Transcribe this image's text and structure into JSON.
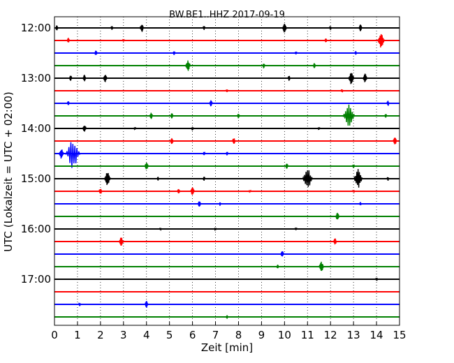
{
  "chart_data": {
    "type": "line",
    "title": "BW.BE1..HHZ 2017-09-19",
    "xlabel": "Zeit  [min]",
    "ylabel": "UTC (Lokalzeit = UTC + 02:00)",
    "xlim": [
      0,
      15
    ],
    "x_ticks": [
      "0",
      "1",
      "2",
      "3",
      "4",
      "5",
      "6",
      "7",
      "8",
      "9",
      "10",
      "11",
      "12",
      "13",
      "14",
      "15"
    ],
    "y_ticks": [
      "12:00",
      "13:00",
      "14:00",
      "15:00",
      "16:00",
      "17:00"
    ],
    "grid": "vertical dotted lines at each minute",
    "trace_interval_minutes": 15,
    "trace_colors": [
      "#000000",
      "#ff0000",
      "#0000ff",
      "#008000"
    ],
    "series": [
      {
        "start": "12:00",
        "color": "#000000",
        "events": [
          {
            "x": 0.1,
            "amp": 4
          },
          {
            "x": 2.5,
            "amp": 3
          },
          {
            "x": 3.8,
            "amp": 6
          },
          {
            "x": 6.5,
            "amp": 3
          },
          {
            "x": 10.0,
            "amp": 7
          },
          {
            "x": 12.0,
            "amp": 3
          },
          {
            "x": 13.3,
            "amp": 5
          }
        ]
      },
      {
        "start": "12:15",
        "color": "#ff0000",
        "events": [
          {
            "x": 0.6,
            "amp": 4
          },
          {
            "x": 3.0,
            "amp": 2
          },
          {
            "x": 11.8,
            "amp": 3
          },
          {
            "x": 14.2,
            "amp": 11
          }
        ]
      },
      {
        "start": "12:30",
        "color": "#0000ff",
        "events": [
          {
            "x": 1.8,
            "amp": 4
          },
          {
            "x": 5.2,
            "amp": 3
          },
          {
            "x": 10.5,
            "amp": 2
          },
          {
            "x": 13.1,
            "amp": 3
          }
        ]
      },
      {
        "start": "12:45",
        "color": "#008000",
        "events": [
          {
            "x": 5.8,
            "amp": 8
          },
          {
            "x": 9.1,
            "amp": 4
          },
          {
            "x": 11.3,
            "amp": 4
          }
        ]
      },
      {
        "start": "13:00",
        "color": "#000000",
        "events": [
          {
            "x": 0.7,
            "amp": 4
          },
          {
            "x": 1.3,
            "amp": 5
          },
          {
            "x": 2.2,
            "amp": 6
          },
          {
            "x": 10.2,
            "amp": 4
          },
          {
            "x": 12.9,
            "amp": 9
          },
          {
            "x": 13.5,
            "amp": 7
          }
        ]
      },
      {
        "start": "13:15",
        "color": "#ff0000",
        "events": [
          {
            "x": 7.5,
            "amp": 2
          },
          {
            "x": 12.5,
            "amp": 2
          }
        ]
      },
      {
        "start": "13:30",
        "color": "#0000ff",
        "events": [
          {
            "x": 0.6,
            "amp": 3
          },
          {
            "x": 6.8,
            "amp": 5
          },
          {
            "x": 14.5,
            "amp": 4
          }
        ]
      },
      {
        "start": "13:45",
        "color": "#008000",
        "events": [
          {
            "x": 4.2,
            "amp": 5
          },
          {
            "x": 5.1,
            "amp": 4
          },
          {
            "x": 8.0,
            "amp": 4
          },
          {
            "x": 12.8,
            "amp": 18
          },
          {
            "x": 14.4,
            "amp": 3
          }
        ]
      },
      {
        "start": "14:00",
        "color": "#000000",
        "events": [
          {
            "x": 1.3,
            "amp": 6
          },
          {
            "x": 3.5,
            "amp": 2
          },
          {
            "x": 6.0,
            "amp": 3
          },
          {
            "x": 11.5,
            "amp": 2
          }
        ]
      },
      {
        "start": "14:15",
        "color": "#ff0000",
        "events": [
          {
            "x": 5.1,
            "amp": 5
          },
          {
            "x": 7.8,
            "amp": 5
          },
          {
            "x": 14.8,
            "amp": 6
          }
        ]
      },
      {
        "start": "14:30",
        "color": "#0000ff",
        "events": [
          {
            "x": 0.3,
            "amp": 8
          },
          {
            "x": 0.8,
            "amp": 22
          },
          {
            "x": 6.5,
            "amp": 3
          },
          {
            "x": 7.5,
            "amp": 3
          }
        ]
      },
      {
        "start": "14:45",
        "color": "#008000",
        "events": [
          {
            "x": 4.0,
            "amp": 6
          },
          {
            "x": 10.1,
            "amp": 4
          },
          {
            "x": 13.0,
            "amp": 3
          }
        ]
      },
      {
        "start": "15:00",
        "color": "#000000",
        "events": [
          {
            "x": 2.3,
            "amp": 10
          },
          {
            "x": 4.5,
            "amp": 3
          },
          {
            "x": 6.5,
            "amp": 3
          },
          {
            "x": 11.0,
            "amp": 16
          },
          {
            "x": 13.2,
            "amp": 14
          },
          {
            "x": 14.5,
            "amp": 3
          }
        ]
      },
      {
        "start": "15:15",
        "color": "#ff0000",
        "events": [
          {
            "x": 2.0,
            "amp": 5
          },
          {
            "x": 5.4,
            "amp": 4
          },
          {
            "x": 6.0,
            "amp": 6
          },
          {
            "x": 8.5,
            "amp": 2
          },
          {
            "x": 13.0,
            "amp": 2
          }
        ]
      },
      {
        "start": "15:30",
        "color": "#0000ff",
        "events": [
          {
            "x": 6.3,
            "amp": 5
          },
          {
            "x": 7.2,
            "amp": 3
          },
          {
            "x": 13.3,
            "amp": 3
          }
        ]
      },
      {
        "start": "15:45",
        "color": "#008000",
        "events": [
          {
            "x": 12.3,
            "amp": 6
          }
        ]
      },
      {
        "start": "16:00",
        "color": "#000000",
        "events": [
          {
            "x": 4.6,
            "amp": 2
          },
          {
            "x": 7.0,
            "amp": 2
          },
          {
            "x": 10.5,
            "amp": 2
          }
        ]
      },
      {
        "start": "16:15",
        "color": "#ff0000",
        "events": [
          {
            "x": 2.9,
            "amp": 7
          },
          {
            "x": 12.2,
            "amp": 5
          }
        ]
      },
      {
        "start": "16:30",
        "color": "#0000ff",
        "events": [
          {
            "x": 9.9,
            "amp": 5
          }
        ]
      },
      {
        "start": "16:45",
        "color": "#008000",
        "events": [
          {
            "x": 9.7,
            "amp": 3
          },
          {
            "x": 11.6,
            "amp": 8
          }
        ]
      },
      {
        "start": "17:00",
        "color": "#000000",
        "events": [
          {
            "x": 14.0,
            "amp": 2
          }
        ]
      },
      {
        "start": "17:15",
        "color": "#ff0000",
        "events": []
      },
      {
        "start": "17:30",
        "color": "#0000ff",
        "events": [
          {
            "x": 1.1,
            "amp": 3
          },
          {
            "x": 4.0,
            "amp": 5
          }
        ]
      },
      {
        "start": "17:45",
        "color": "#008000",
        "events": [
          {
            "x": 7.5,
            "amp": 3
          }
        ]
      }
    ]
  }
}
